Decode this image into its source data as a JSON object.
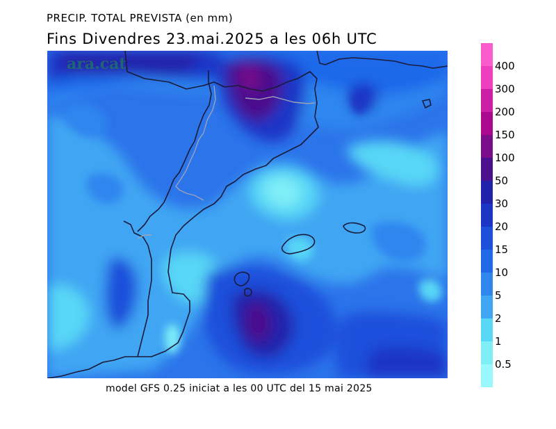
{
  "title": "PRECIP. TOTAL PREVISTA (en mm)",
  "subtitle": "Fins Divendres 23.mai.2025 a les 06h UTC",
  "watermark": "ara.cat",
  "caption": "model GFS 0.25 iniciat a les 00 UTC del 15 mai 2025",
  "legend": {
    "unit": "mm",
    "levels": [
      {
        "label": "0.5",
        "color": "#99f8fc"
      },
      {
        "label": "1",
        "color": "#7feef7"
      },
      {
        "label": "2",
        "color": "#59d7f6"
      },
      {
        "label": "5",
        "color": "#3fa6f3"
      },
      {
        "label": "10",
        "color": "#2e86ef"
      },
      {
        "label": "15",
        "color": "#1f69ea"
      },
      {
        "label": "20",
        "color": "#1c4fdb"
      },
      {
        "label": "30",
        "color": "#1b36c6"
      },
      {
        "label": "50",
        "color": "#2121ab"
      },
      {
        "label": "100",
        "color": "#4b108d"
      },
      {
        "label": "150",
        "color": "#7b0c8a"
      },
      {
        "label": "200",
        "color": "#a9088f"
      },
      {
        "label": "300",
        "color": "#cf1ea6"
      },
      {
        "label": "400",
        "color": "#f03fbe"
      }
    ],
    "top_color": "#fb5ccd"
  },
  "map": {
    "background_color": "#2b74ea",
    "land_outline_color": "#1a1a3a",
    "border_color": "#9ca3b8"
  }
}
